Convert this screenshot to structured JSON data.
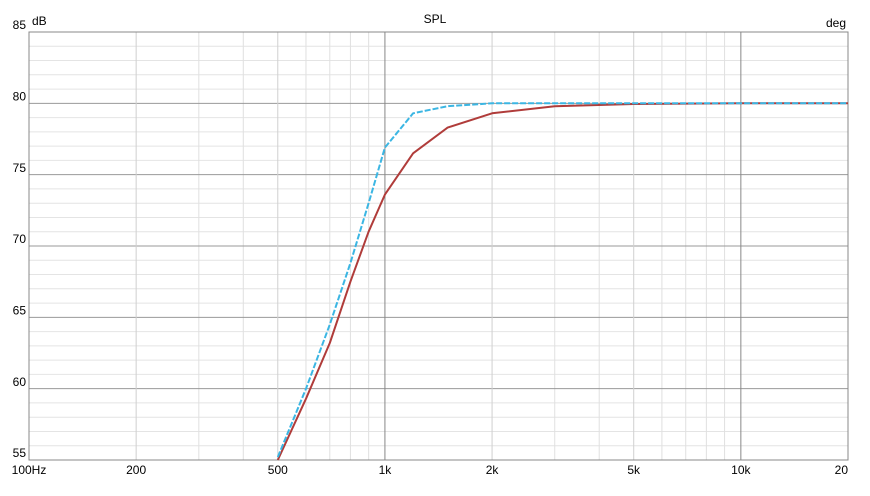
{
  "chart_data": {
    "type": "line",
    "title": "SPL",
    "ylabel": "dB",
    "y2label": "deg",
    "xscale": "log",
    "grid": true,
    "xlim": [
      100,
      20000
    ],
    "xticks": [
      {
        "value": 100,
        "label": "100Hz"
      },
      200,
      500,
      {
        "value": 1000,
        "label": "1k"
      },
      {
        "value": 2000,
        "label": "2k"
      },
      {
        "value": 5000,
        "label": "5k"
      },
      {
        "value": 10000,
        "label": "10k"
      },
      {
        "value": 20000,
        "label": "20"
      }
    ],
    "xminor": [
      300,
      400,
      600,
      700,
      800,
      900,
      3000,
      4000,
      6000,
      7000,
      8000,
      9000
    ],
    "ylim": [
      55,
      85
    ],
    "yticks": [
      55,
      60,
      65,
      70,
      75,
      80,
      85
    ],
    "yminor": [
      56,
      57,
      58,
      59,
      61,
      62,
      63,
      64,
      66,
      67,
      68,
      69,
      71,
      72,
      73,
      74,
      76,
      77,
      78,
      79,
      81,
      82,
      83,
      84
    ],
    "x": [
      500,
      600,
      700,
      800,
      900,
      1000,
      1200,
      1500,
      2000,
      3000,
      5000,
      10000,
      20000
    ],
    "series": [
      {
        "color": "#b03c3a",
        "dash": false,
        "values": [
          55,
          59.3,
          63.2,
          67.5,
          71.0,
          73.6,
          76.5,
          78.3,
          79.3,
          79.8,
          79.95,
          80,
          80
        ]
      },
      {
        "color": "#3bb6e3",
        "dash": true,
        "values": [
          55.2,
          60.0,
          64.5,
          68.8,
          73.0,
          76.9,
          79.3,
          79.8,
          80,
          80,
          80,
          80,
          80
        ]
      }
    ]
  }
}
